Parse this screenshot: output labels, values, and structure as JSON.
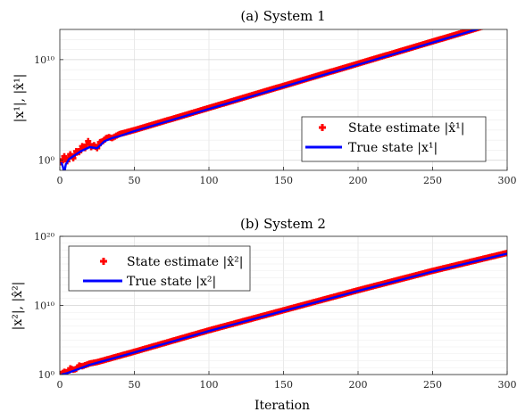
{
  "chart_data": [
    {
      "type": "line",
      "title": "(a) System 1",
      "ylabel": "|x¹|,  |x̂¹|",
      "xlabel": "",
      "yscale": "log",
      "xlim": [
        0,
        300
      ],
      "ylim_log10": [
        -1,
        13
      ],
      "xticks": [
        "0",
        "50",
        "100",
        "150",
        "200",
        "250",
        "300"
      ],
      "yticks": [
        {
          "label": "10⁰"
        },
        {
          "label": "10¹⁰"
        }
      ],
      "grid": true,
      "legend_placement": "center-right",
      "series": [
        {
          "name": "State estimate |x̂¹|",
          "color": "#ff0000",
          "marker": "plus",
          "log10_values": [
            [
              1,
              -0.2
            ],
            [
              3,
              0.4
            ],
            [
              5,
              -0.1
            ],
            [
              7,
              0.6
            ],
            [
              9,
              0.2
            ],
            [
              11,
              0.9
            ],
            [
              13,
              0.8
            ],
            [
              15,
              1.4
            ],
            [
              17,
              1.2
            ],
            [
              19,
              1.9
            ],
            [
              21,
              1.3
            ],
            [
              23,
              1.5
            ],
            [
              25,
              1.2
            ],
            [
              27,
              1.8
            ],
            [
              29,
              1.9
            ],
            [
              31,
              2.2
            ],
            [
              33,
              2.3
            ],
            [
              35,
              2.2
            ],
            [
              40,
              2.6
            ],
            [
              50,
              3.0
            ],
            [
              75,
              4.1
            ],
            [
              100,
              5.2
            ],
            [
              150,
              7.4
            ],
            [
              200,
              9.6
            ],
            [
              250,
              11.8
            ],
            [
              300,
              14.0
            ]
          ]
        },
        {
          "name": "True state |x¹|",
          "color": "#0000ff",
          "log10_values": [
            [
              1,
              -0.2
            ],
            [
              2,
              -0.6
            ],
            [
              3,
              -1.3
            ],
            [
              4,
              -0.4
            ],
            [
              5,
              -0.2
            ],
            [
              6,
              0.1
            ],
            [
              8,
              0.3
            ],
            [
              10,
              0.5
            ],
            [
              14,
              0.9
            ],
            [
              20,
              1.3
            ],
            [
              25,
              1.2
            ],
            [
              30,
              1.9
            ],
            [
              35,
              2.2
            ],
            [
              40,
              2.4
            ],
            [
              50,
              2.9
            ],
            [
              75,
              4.0
            ],
            [
              100,
              5.1
            ],
            [
              150,
              7.3
            ],
            [
              200,
              9.5
            ],
            [
              250,
              11.7
            ],
            [
              300,
              13.9
            ]
          ]
        }
      ]
    },
    {
      "type": "line",
      "title": "(b) System 2",
      "ylabel": "|x²|,  |x̂²|",
      "xlabel": "Iteration",
      "yscale": "log",
      "xlim": [
        0,
        300
      ],
      "ylim_log10": [
        0,
        20
      ],
      "xticks": [
        "0",
        "50",
        "100",
        "150",
        "200",
        "250",
        "300"
      ],
      "yticks": [
        {
          "label": "10⁰"
        },
        {
          "label": "10¹⁰"
        },
        {
          "label": "10²⁰"
        }
      ],
      "grid": true,
      "legend_placement": "top-left",
      "series": [
        {
          "name": "State estimate |x̂²|",
          "color": "#ff0000",
          "marker": "plus",
          "log10_values": [
            [
              1,
              0.1
            ],
            [
              3,
              0.4
            ],
            [
              5,
              0.3
            ],
            [
              7,
              0.9
            ],
            [
              9,
              0.7
            ],
            [
              11,
              0.8
            ],
            [
              13,
              1.3
            ],
            [
              15,
              1.2
            ],
            [
              20,
              1.6
            ],
            [
              25,
              1.8
            ],
            [
              50,
              3.3
            ],
            [
              100,
              6.4
            ],
            [
              150,
              9.3
            ],
            [
              200,
              12.2
            ],
            [
              250,
              15.0
            ],
            [
              300,
              17.6
            ]
          ]
        },
        {
          "name": "True state |x²|",
          "color": "#0000ff",
          "log10_values": [
            [
              1,
              0.0
            ],
            [
              5,
              0.2
            ],
            [
              10,
              0.6
            ],
            [
              15,
              1.0
            ],
            [
              20,
              1.4
            ],
            [
              25,
              1.7
            ],
            [
              50,
              3.2
            ],
            [
              100,
              6.3
            ],
            [
              150,
              9.2
            ],
            [
              200,
              12.1
            ],
            [
              250,
              14.9
            ],
            [
              300,
              17.5
            ]
          ]
        }
      ]
    }
  ]
}
